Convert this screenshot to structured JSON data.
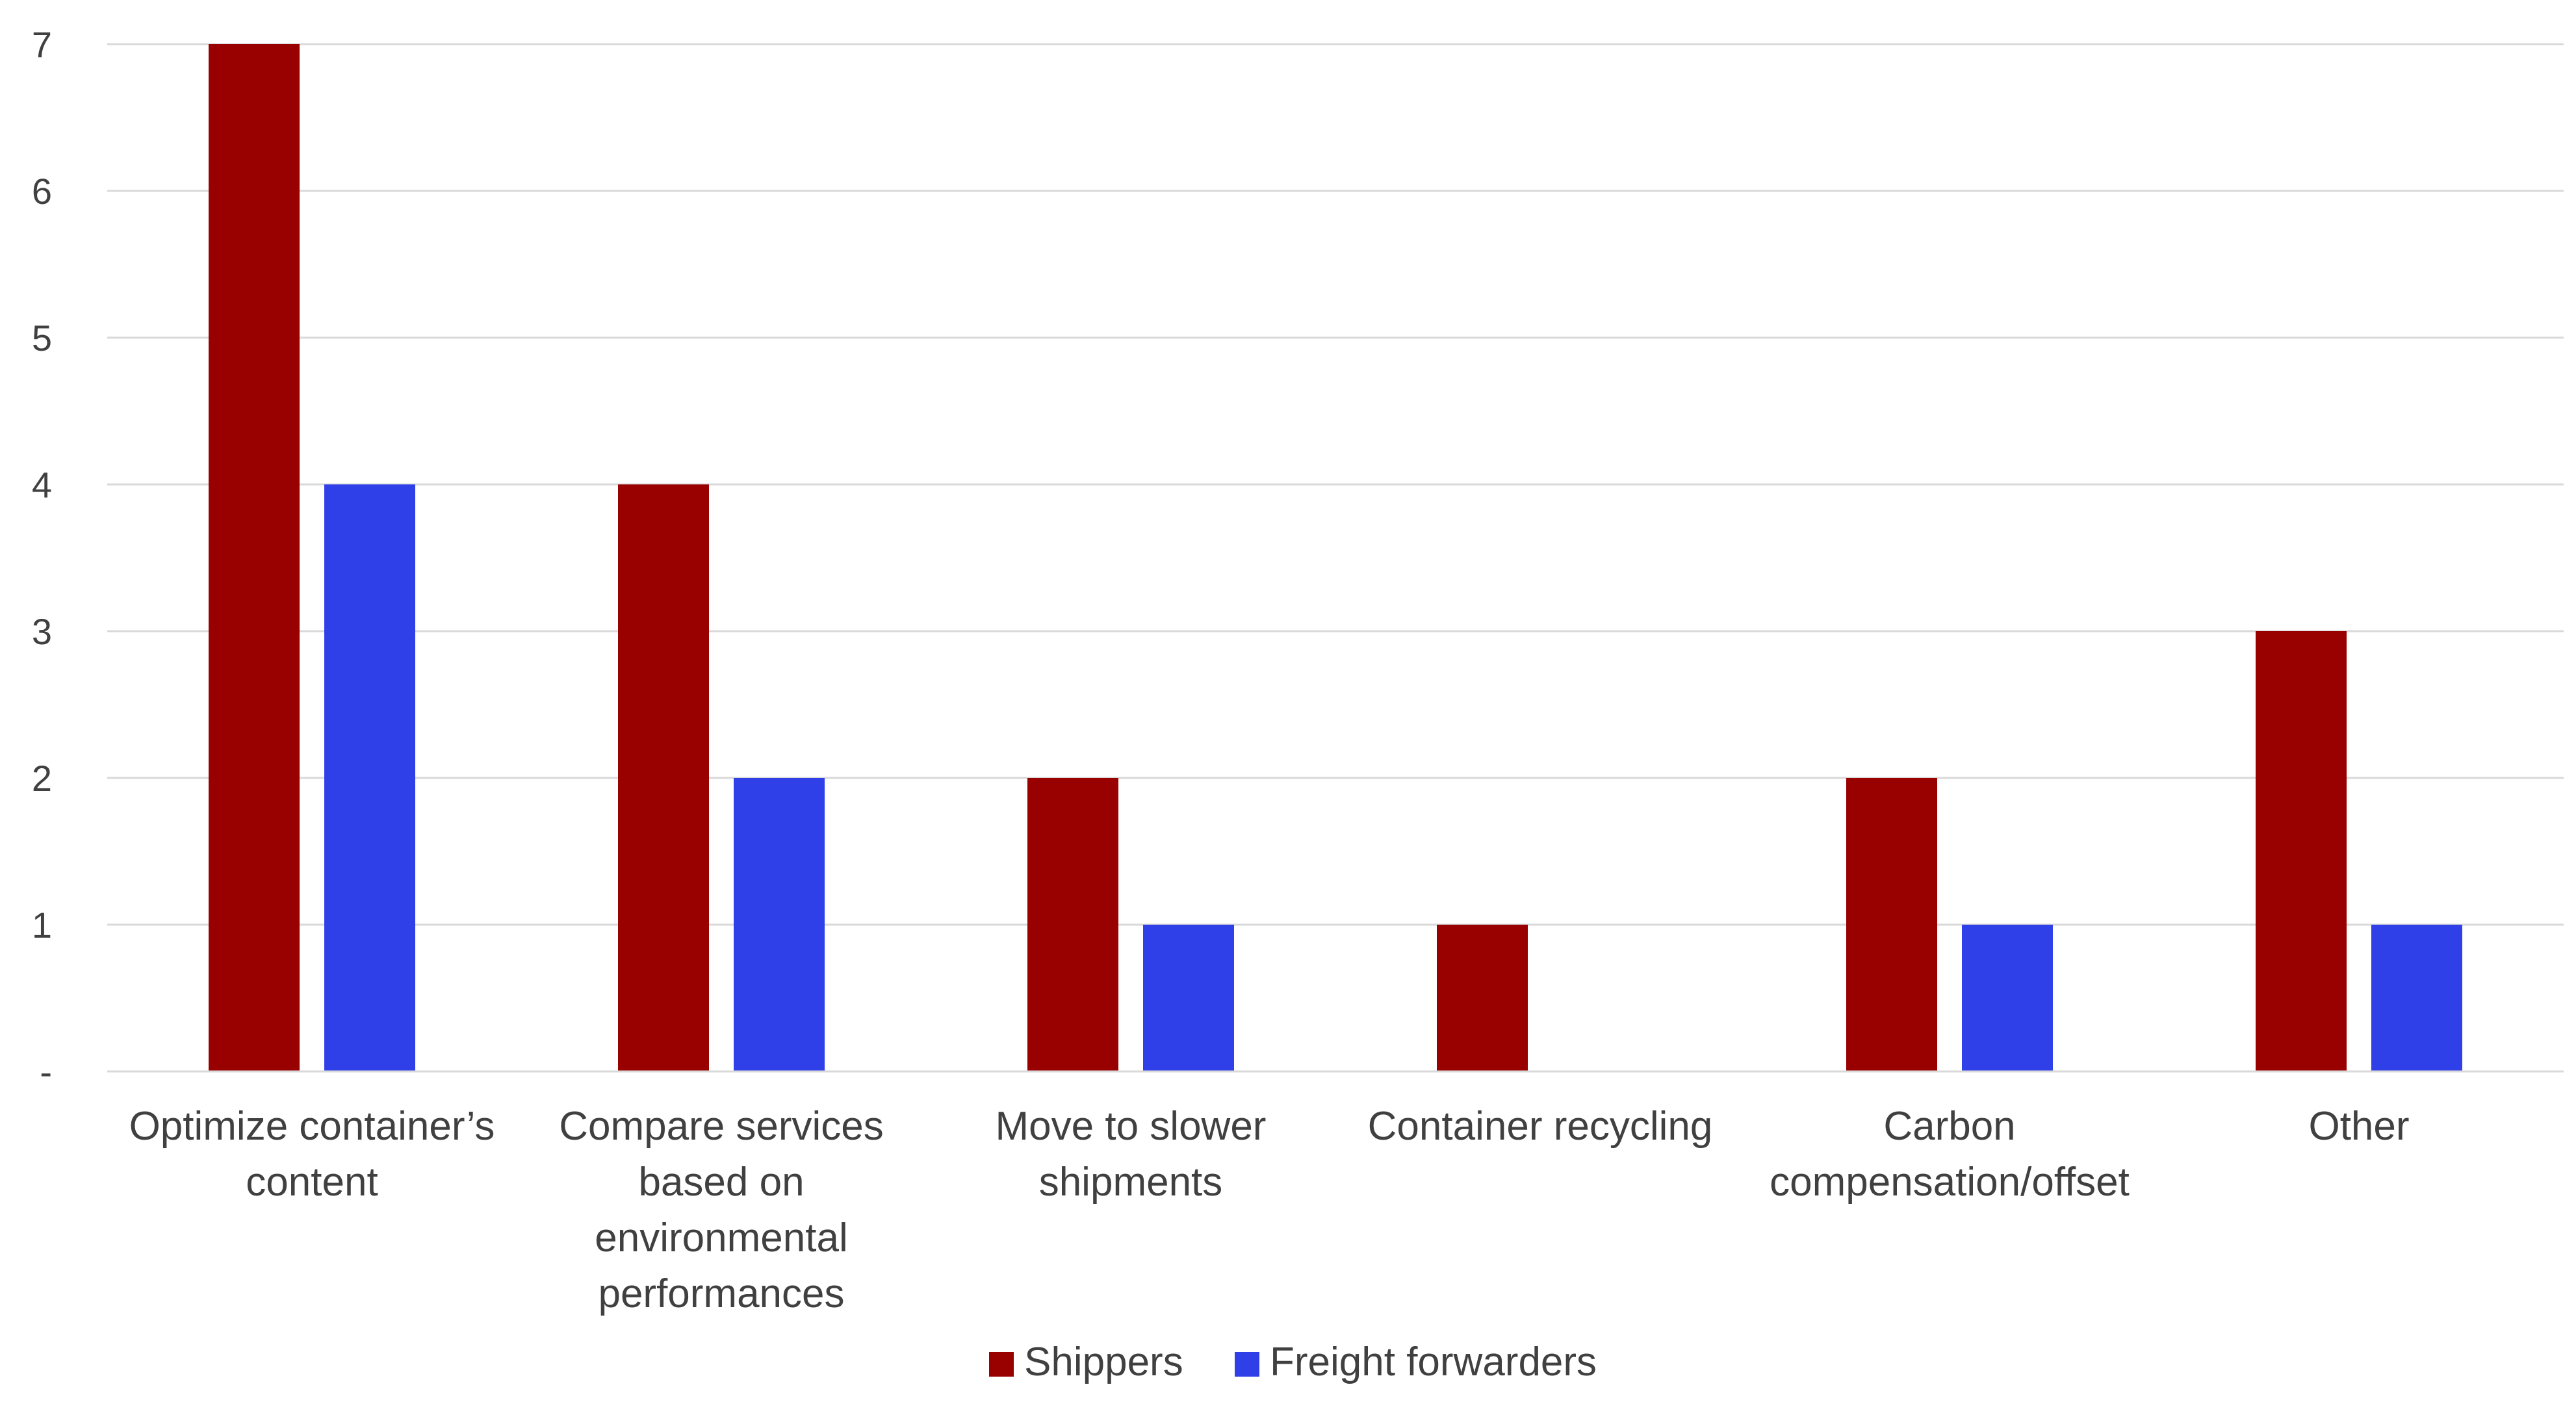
{
  "chart_data": {
    "type": "bar",
    "title": "",
    "xlabel": "",
    "ylabel": "",
    "ylim": [
      0,
      7
    ],
    "grid": true,
    "legend_position": "bottom",
    "yticks": [
      {
        "value": 0,
        "label": "-"
      },
      {
        "value": 1,
        "label": "1"
      },
      {
        "value": 2,
        "label": "2"
      },
      {
        "value": 3,
        "label": "3"
      },
      {
        "value": 4,
        "label": "4"
      },
      {
        "value": 5,
        "label": "5"
      },
      {
        "value": 6,
        "label": "6"
      },
      {
        "value": 7,
        "label": "7"
      }
    ],
    "categories": [
      [
        "Optimize container’s",
        "content"
      ],
      [
        "Compare services",
        "based on",
        "environmental",
        "performances"
      ],
      [
        "Move to slower",
        "shipments"
      ],
      [
        "Container recycling"
      ],
      [
        "Carbon",
        "compensation/offset"
      ],
      [
        "Other"
      ]
    ],
    "series": [
      {
        "name": "Shippers",
        "color": "#990000",
        "values": [
          7,
          4,
          2,
          1,
          2,
          3
        ]
      },
      {
        "name": "Freight forwarders",
        "color": "#3040E8",
        "values": [
          4,
          2,
          1,
          0,
          1,
          1
        ]
      }
    ]
  }
}
